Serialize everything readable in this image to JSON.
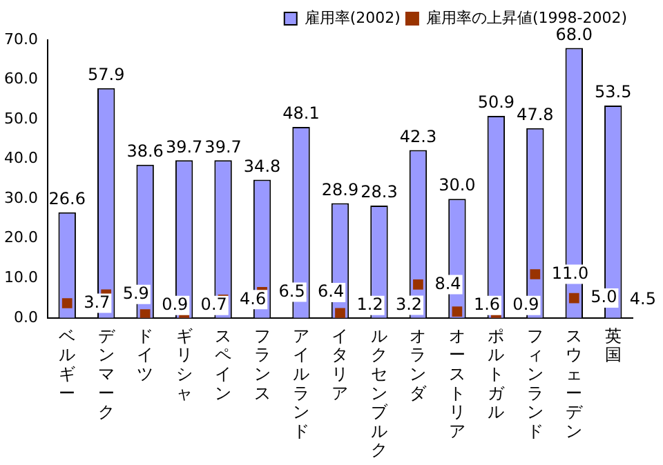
{
  "chart_data": {
    "type": "bar",
    "categories": [
      "ベルギー",
      "デンマーク",
      "ドイツ",
      "ギリシャ",
      "スペイン",
      "フランス",
      "アイルランド",
      "イタリア",
      "ルクセンブルク",
      "オランダ",
      "オーストリア",
      "ポルトガル",
      "フィンランド",
      "スウェーデン",
      "英国"
    ],
    "series": [
      {
        "name": "雇用率(2002)",
        "color": "#9999ff",
        "values": [
          26.6,
          57.9,
          38.6,
          39.7,
          39.7,
          34.8,
          48.1,
          28.9,
          28.3,
          42.3,
          30.0,
          50.9,
          47.8,
          68.0,
          53.5
        ],
        "value_labels": [
          "26.6",
          "57.9",
          "38.6",
          "39.7",
          "39.7",
          "34.8",
          "48.1",
          "28.9",
          "28.3",
          "42.3",
          "30.0",
          "50.9",
          "47.8",
          "68.0",
          "53.5"
        ]
      },
      {
        "name": "雇用率の上昇値(1998-2002)",
        "type": "scatter",
        "color": "#993300",
        "values": [
          3.7,
          5.9,
          0.9,
          0.7,
          4.6,
          6.5,
          6.4,
          1.2,
          3.2,
          8.4,
          1.6,
          0.9,
          11.0,
          5.0,
          4.5
        ],
        "value_labels": [
          "3.7",
          "5.9",
          "0.9",
          "0.7",
          "4.6",
          "6.5",
          "6.4",
          "1.2",
          "3.2",
          "8.4",
          "1.6",
          "0.9",
          "11.0",
          "5.0",
          "4.5"
        ]
      }
    ],
    "ylim": [
      0,
      70
    ],
    "yticks": [
      {
        "value": 0,
        "label": "0.0"
      },
      {
        "value": 10,
        "label": "10.0"
      },
      {
        "value": 20,
        "label": "20.0"
      },
      {
        "value": 30,
        "label": "30.0"
      },
      {
        "value": 40,
        "label": "40.0"
      },
      {
        "value": 50,
        "label": "50.0"
      },
      {
        "value": 60,
        "label": "60.0"
      },
      {
        "value": 70,
        "label": "70.0"
      }
    ],
    "grid": false,
    "legend": "top right",
    "marker": "square"
  }
}
